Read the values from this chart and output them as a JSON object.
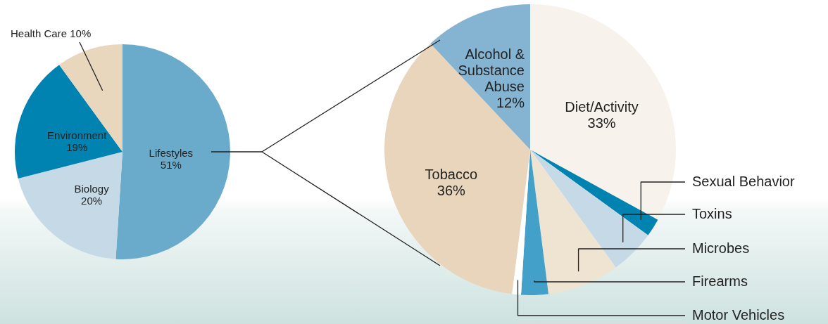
{
  "chart_data": [
    {
      "type": "pie",
      "categories": [
        "Lifestyles",
        "Biology",
        "Environment",
        "Health Care"
      ],
      "values": [
        51,
        20,
        19,
        10
      ],
      "colors": [
        "#6aaacb",
        "#c5dae6",
        "#0083b0",
        "#e8d6bd"
      ],
      "value_labels": [
        "51%",
        "20%",
        "19%",
        "10%"
      ]
    },
    {
      "type": "pie",
      "categories": [
        "Diet/Activity",
        "Sexual Behavior",
        "Toxins",
        "Microbes",
        "Firearms",
        "Motor Vehicles",
        "Tobacco",
        "Alcohol & Substance Abuse"
      ],
      "values": [
        33,
        2,
        5,
        8,
        3,
        1,
        36,
        12
      ],
      "colors": [
        "#f7f2eb",
        "#0083b0",
        "#c5dae6",
        "#efe3d2",
        "#43a0c8",
        "#ffffff",
        "#e8d5bb",
        "#85b4d2"
      ],
      "value_labels": [
        "33%",
        null,
        null,
        null,
        null,
        null,
        "36%",
        "12%"
      ]
    }
  ]
}
